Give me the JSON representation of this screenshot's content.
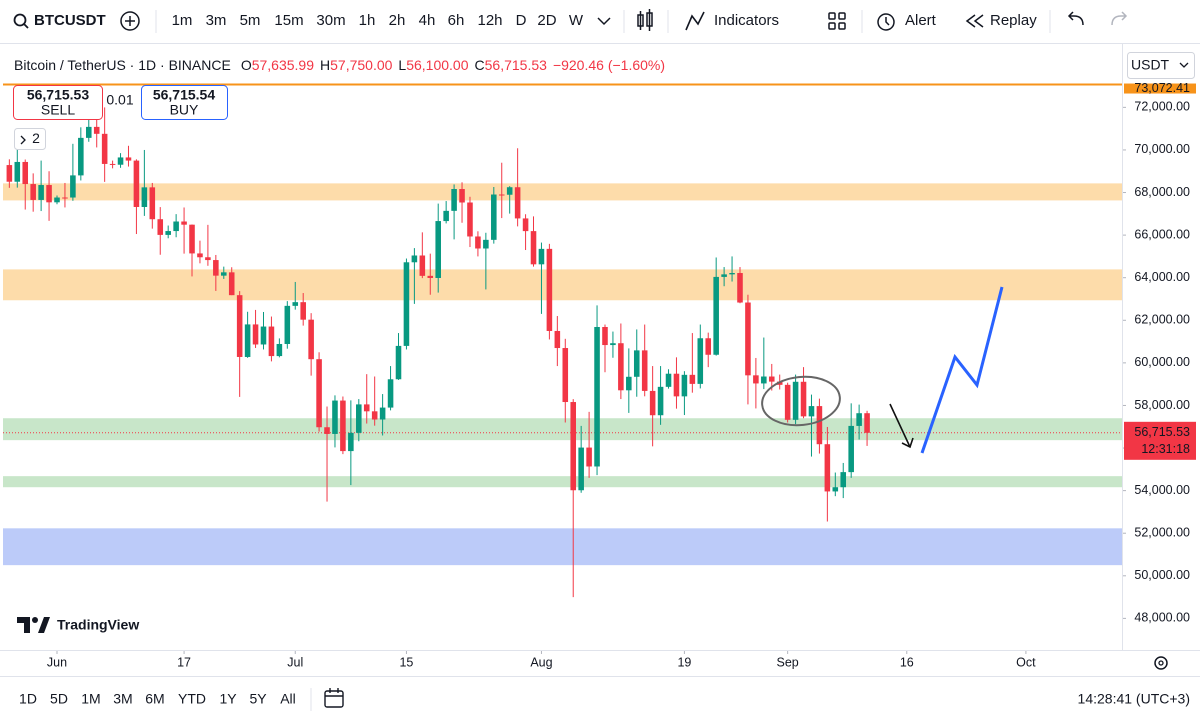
{
  "toolbar": {
    "symbol": "BTCUSDT",
    "intervals": [
      "1m",
      "3m",
      "5m",
      "15m",
      "30m",
      "1h",
      "2h",
      "4h",
      "6h",
      "12h",
      "D",
      "2D",
      "W"
    ],
    "indicators": "Indicators",
    "alert": "Alert",
    "replay": "Replay"
  },
  "legend": {
    "title": "Bitcoin / TetherUS · 1D · BINANCE",
    "items": [
      "O",
      "57,635.99",
      "H",
      "57,750.00",
      "L",
      "56,100.00",
      "C",
      "56,715.53",
      "−920.46 (−1.60%)"
    ],
    "sell_price": "56,715.53",
    "sell": "SELL",
    "spread": "0.01",
    "buy_price": "56,715.54",
    "buy": "BUY",
    "indicator_count": "2",
    "currency": "USDT",
    "brand": "TradingView"
  },
  "chart_data": {
    "type": "candlestick",
    "up_color": "#089981",
    "down_color": "#f23645",
    "x": [
      -6,
      -5,
      -4,
      -3,
      -2,
      -1,
      0,
      1,
      2,
      3,
      4,
      5,
      6,
      7,
      8,
      9,
      10,
      11,
      12,
      13,
      14,
      15,
      16,
      17,
      18,
      19,
      20,
      21,
      22,
      23,
      24,
      25,
      26,
      27,
      28,
      29,
      30,
      31,
      32,
      33,
      34,
      35,
      36,
      37,
      38,
      39,
      40,
      41,
      42,
      43,
      44,
      45,
      46,
      47,
      48,
      49,
      50,
      51,
      52,
      53,
      54,
      55,
      56,
      57,
      58,
      59,
      60,
      61,
      62,
      63,
      64,
      65,
      66,
      67,
      68,
      69,
      70,
      71,
      72,
      73,
      74,
      75,
      76,
      77,
      78,
      79,
      80,
      81,
      82,
      83,
      84,
      85,
      86,
      87,
      88,
      89,
      90,
      91,
      92,
      93,
      94,
      95,
      96,
      97,
      98,
      99,
      100,
      101,
      102
    ],
    "open": [
      69290,
      68507,
      69436,
      68398,
      67652,
      68352,
      67540,
      67766,
      67765,
      68805,
      70567,
      71083,
      70757,
      69343,
      69306,
      69648,
      69500,
      67321,
      68243,
      66747,
      66010,
      66191,
      66639,
      66490,
      65140,
      64960,
      64828,
      64096,
      64252,
      63180,
      60277,
      61806,
      60864,
      61706,
      60319,
      60887,
      62678,
      62851,
      62029,
      60173,
      56977,
      56662,
      58230,
      55857,
      56714,
      58050,
      57725,
      57340,
      57900,
      59230,
      60797,
      64724,
      65043,
      64087,
      63987,
      66660,
      67139,
      68165,
      67532,
      65936,
      65372,
      65778,
      67907,
      67896,
      68249,
      66784,
      66188,
      64628,
      65354,
      61498,
      60697,
      58161,
      54018,
      56022,
      55134,
      61685,
      60837,
      60923,
      58712,
      59346,
      60587,
      58683,
      57541,
      58874,
      59491,
      58427,
      59438,
      59013,
      61156,
      60381,
      64037,
      64157,
      64220,
      62834,
      59415,
      59034,
      59359,
      59119,
      58969,
      57325,
      59112,
      57487,
      57970,
      56180,
      53962,
      54160,
      54869,
      57039,
      57635.99
    ],
    "high": [
      69560,
      70600,
      69550,
      68900,
      69500,
      69000,
      67860,
      68450,
      70288,
      71063,
      71758,
      71700,
      71997,
      69500,
      69850,
      70195,
      69560,
      69999,
      68450,
      67316,
      66450,
      66985,
      67298,
      66500,
      65740,
      66482,
      65068,
      64520,
      64491,
      63370,
      62400,
      62487,
      62390,
      62176,
      61150,
      62900,
      63800,
      63280,
      62335,
      60498,
      57950,
      58475,
      58420,
      58240,
      58300,
      59470,
      59360,
      58535,
      59850,
      61400,
      64900,
      65390,
      66130,
      65130,
      67480,
      67600,
      68380,
      68480,
      67800,
      66180,
      66110,
      68260,
      69400,
      68300,
      70079,
      66980,
      66880,
      65650,
      65590,
      62200,
      61130,
      58300,
      57040,
      57700,
      62700,
      61800,
      61470,
      61850,
      60680,
      61570,
      61800,
      59850,
      59850,
      59700,
      60260,
      59610,
      61400,
      61800,
      61420,
      64950,
      64500,
      65000,
      64500,
      63200,
      60230,
      61190,
      59950,
      59450,
      59070,
      59450,
      59800,
      58510,
      58320,
      56990,
      54850,
      55300,
      58100,
      58040,
      57750
    ],
    "low": [
      68220,
      68230,
      67200,
      67100,
      67130,
      66670,
      67450,
      67300,
      67612,
      68567,
      70383,
      70118,
      68500,
      69135,
      69160,
      69220,
      66051,
      66902,
      66304,
      65078,
      65852,
      65900,
      65130,
      64060,
      64675,
      64559,
      63379,
      63943,
      63180,
      58402,
      60236,
      60700,
      60630,
      60070,
      60260,
      60666,
      62500,
      61750,
      59400,
      56771,
      53485,
      56030,
      55715,
      54260,
      56320,
      57150,
      57050,
      56590,
      57770,
      59200,
      60630,
      62770,
      63980,
      63200,
      63300,
      66550,
      65800,
      66580,
      65440,
      65000,
      63450,
      65600,
      66800,
      67010,
      66410,
      65300,
      64520,
      62300,
      61100,
      59850,
      57200,
      49000,
      53900,
      54600,
      54730,
      59560,
      60240,
      58300,
      57650,
      58410,
      58430,
      56080,
      57090,
      58790,
      57850,
      57550,
      58600,
      58800,
      59800,
      60340,
      63600,
      63820,
      62800,
      58050,
      57860,
      58770,
      58700,
      58750,
      57200,
      57120,
      57400,
      55600,
      55740,
      52550,
      53740,
      53650,
      54600,
      56400,
      56100
    ],
    "close": [
      68507,
      69436,
      68398,
      67652,
      68352,
      67540,
      67766,
      67765,
      68805,
      70567,
      71083,
      70757,
      69343,
      69306,
      69648,
      69500,
      67321,
      68243,
      66747,
      66010,
      66191,
      66639,
      66490,
      65140,
      64960,
      64828,
      64096,
      64252,
      63180,
      60277,
      61806,
      60864,
      61706,
      60319,
      60887,
      62678,
      62851,
      62029,
      60173,
      56977,
      56662,
      58230,
      55857,
      56714,
      58050,
      57725,
      57340,
      57900,
      59230,
      60797,
      64724,
      65043,
      64087,
      63987,
      66660,
      67139,
      68165,
      67532,
      65936,
      65372,
      65778,
      67907,
      67896,
      68249,
      66784,
      66188,
      64628,
      65354,
      61498,
      60697,
      58161,
      54018,
      56022,
      55134,
      61685,
      60837,
      60923,
      58712,
      59346,
      60587,
      58683,
      57541,
      58874,
      59491,
      58427,
      59438,
      59013,
      61156,
      60381,
      64037,
      64157,
      64220,
      62834,
      59415,
      59034,
      59359,
      59119,
      58969,
      57325,
      59112,
      57487,
      57970,
      56180,
      53962,
      54160,
      54869,
      57039,
      57635.99,
      56715.53
    ],
    "xlim": [
      -6.8,
      134.1
    ],
    "ylim": [
      46750,
      73050
    ],
    "xticks": [
      {
        "value": 0,
        "label": "Jun"
      },
      {
        "value": 16,
        "label": "17"
      },
      {
        "value": 30,
        "label": "Jul"
      },
      {
        "value": 44,
        "label": "15"
      },
      {
        "value": 61,
        "label": "Aug"
      },
      {
        "value": 79,
        "label": "19"
      },
      {
        "value": 92,
        "label": "Sep"
      },
      {
        "value": 107,
        "label": "16"
      },
      {
        "value": 122,
        "label": "Oct"
      }
    ],
    "yticks": [
      {
        "value": 48000,
        "label": "48,000.00"
      },
      {
        "value": 50000,
        "label": "50,000.00"
      },
      {
        "value": 52000,
        "label": "52,000.00"
      },
      {
        "value": 54000,
        "label": "54,000.00"
      },
      {
        "value": 56000,
        "label": "56,000.00"
      },
      {
        "value": 58000,
        "label": "58,000.00"
      },
      {
        "value": 60000,
        "label": "60,000.00"
      },
      {
        "value": 62000,
        "label": "62,000.00"
      },
      {
        "value": 64000,
        "label": "64,000.00"
      },
      {
        "value": 66000,
        "label": "66,000.00"
      },
      {
        "value": 68000,
        "label": "68,000.00"
      },
      {
        "value": 70000,
        "label": "70,000.00"
      },
      {
        "value": 72000,
        "label": "72,000.00"
      }
    ],
    "zones": [
      {
        "range": [
          67630,
          68430
        ],
        "color": "#fddcaa"
      },
      {
        "range": [
          62940,
          64390
        ],
        "color": "#fddcaa"
      },
      {
        "range": [
          56370,
          57400
        ],
        "color": "#c8e6c9"
      },
      {
        "range": [
          54160,
          54680
        ],
        "color": "#c8e6c9"
      },
      {
        "range": [
          50500,
          52230
        ],
        "color": "#bccbf9"
      }
    ],
    "high_line": {
      "value": 73072.41,
      "label": "73,072.41",
      "color": "#f7931a"
    },
    "last_price": {
      "value": 56715.53,
      "label": "56,715.53",
      "countdown": "12:31:18",
      "color": "#f23645"
    }
  },
  "bottom_bar": {
    "ranges": [
      "1D",
      "5D",
      "1M",
      "3M",
      "6M",
      "YTD",
      "1Y",
      "5Y",
      "All"
    ],
    "clock": "14:28:41 (UTC+3)"
  }
}
